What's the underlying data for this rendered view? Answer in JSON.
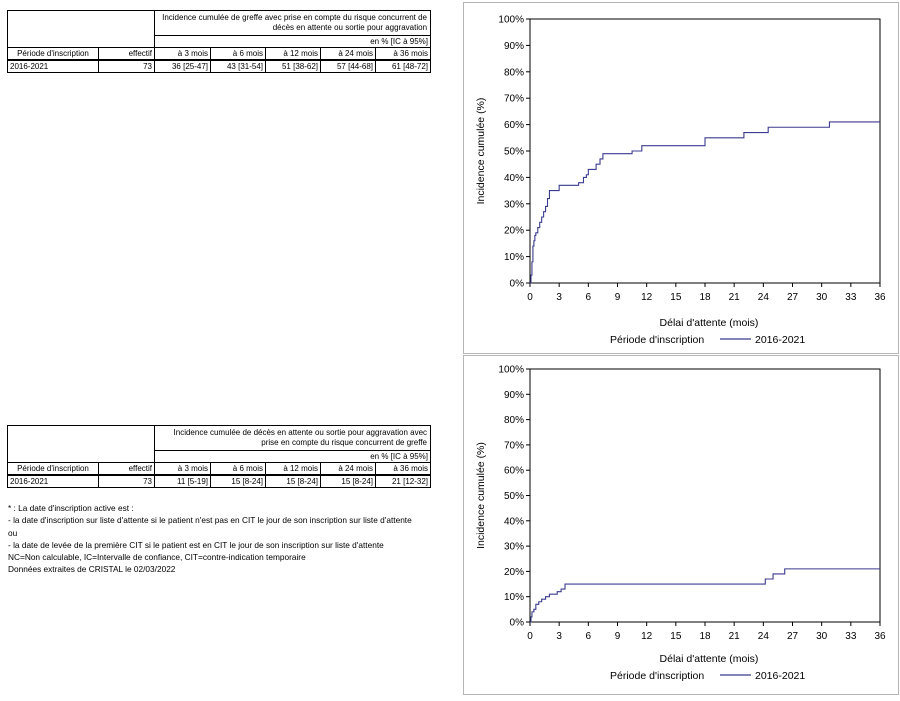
{
  "tables": [
    {
      "header": "Incidence cumulée de greffe avec prise en compte du risque concurrent de décès en attente ou sortie pour aggravation",
      "unit": "en % [IC à 95%]",
      "columns": [
        "Période d'inscription",
        "effectif",
        "à 3 mois",
        "à 6 mois",
        "à 12 mois",
        "à 24 mois",
        "à 36 mois"
      ],
      "rows": [
        [
          "2016-2021",
          "73",
          "36 [25-47]",
          "43 [31-54]",
          "51 [38-62]",
          "57 [44-68]",
          "61 [48-72]"
        ]
      ]
    },
    {
      "header": "Incidence cumulée de décès en attente ou sortie pour aggravation avec prise en compte du risque concurrent de greffe",
      "unit": "en % [IC à 95%]",
      "columns": [
        "Période d'inscription",
        "effectif",
        "à 3 mois",
        "à 6 mois",
        "à 12 mois",
        "à 24 mois",
        "à 36 mois"
      ],
      "rows": [
        [
          "2016-2021",
          "73",
          "11 [5-19]",
          "15 [8-24]",
          "15 [8-24]",
          "15 [8-24]",
          "21 [12-32]"
        ]
      ]
    }
  ],
  "notes": [
    "* : La date d'inscription active est :",
    "- la date d'inscription sur liste d'attente si le patient n'est pas en CIT le jour de son inscription sur liste d'attente",
    "ou",
    "- la date de levée de la première CIT si le patient est en CIT le jour de son inscription sur liste d'attente",
    "NC=Non calculable, IC=Intervalle de confiance, CIT=contre-indication temporaire",
    "Données extraites de CRISTAL le 02/03/2022"
  ],
  "colors": {
    "series": "#3b3b8f",
    "axis": "#000000",
    "frame": "#b5b5b5"
  },
  "chart_data": [
    {
      "type": "line",
      "step": true,
      "xlabel": "Délai d'attente (mois)",
      "ylabel": "Incidence cumulée (%)",
      "xlim": [
        0,
        36
      ],
      "ylim": [
        0,
        100
      ],
      "xticks": [
        "0",
        "3",
        "6",
        "9",
        "12",
        "15",
        "18",
        "21",
        "24",
        "27",
        "30",
        "33",
        "36"
      ],
      "yticks": [
        "0%",
        "10%",
        "20%",
        "30%",
        "40%",
        "50%",
        "60%",
        "70%",
        "80%",
        "90%",
        "100%"
      ],
      "grid": false,
      "legend": {
        "title": "Période d'inscription",
        "position": "bottom"
      },
      "series": [
        {
          "name": "2016-2021",
          "x": [
            0,
            0.1,
            0.2,
            0.3,
            0.4,
            0.5,
            0.6,
            0.8,
            1.0,
            1.2,
            1.4,
            1.6,
            1.8,
            2.0,
            2.2,
            2.5,
            3.0,
            3.5,
            5.0,
            5.5,
            5.8,
            6.0,
            6.3,
            6.8,
            7.2,
            7.5,
            10.5,
            11.5,
            18.0,
            22.0,
            24.5,
            30.8,
            36.0
          ],
          "y": [
            0,
            3,
            8,
            14,
            16,
            18,
            19,
            21,
            23,
            25,
            27,
            29,
            32,
            35,
            35,
            35,
            37,
            37,
            38,
            40,
            41,
            43,
            43,
            45,
            47,
            49,
            50,
            52,
            55,
            57,
            59,
            61,
            61
          ]
        }
      ]
    },
    {
      "type": "line",
      "step": true,
      "xlabel": "Délai d'attente (mois)",
      "ylabel": "Incidence cumulée (%)",
      "xlim": [
        0,
        36
      ],
      "ylim": [
        0,
        100
      ],
      "xticks": [
        "0",
        "3",
        "6",
        "9",
        "12",
        "15",
        "18",
        "21",
        "24",
        "27",
        "30",
        "33",
        "36"
      ],
      "yticks": [
        "0%",
        "10%",
        "20%",
        "30%",
        "40%",
        "50%",
        "60%",
        "70%",
        "80%",
        "90%",
        "100%"
      ],
      "grid": false,
      "legend": {
        "title": "Période d'inscription",
        "position": "bottom"
      },
      "series": [
        {
          "name": "2016-2021",
          "x": [
            0,
            0.1,
            0.2,
            0.4,
            0.6,
            0.9,
            1.2,
            1.6,
            2.0,
            2.8,
            3.2,
            3.6,
            24.2,
            25.0,
            26.2,
            36.0
          ],
          "y": [
            0,
            2,
            4,
            5,
            7,
            8,
            9,
            10,
            11,
            12,
            13,
            15,
            17,
            19,
            21,
            21
          ]
        }
      ]
    }
  ]
}
